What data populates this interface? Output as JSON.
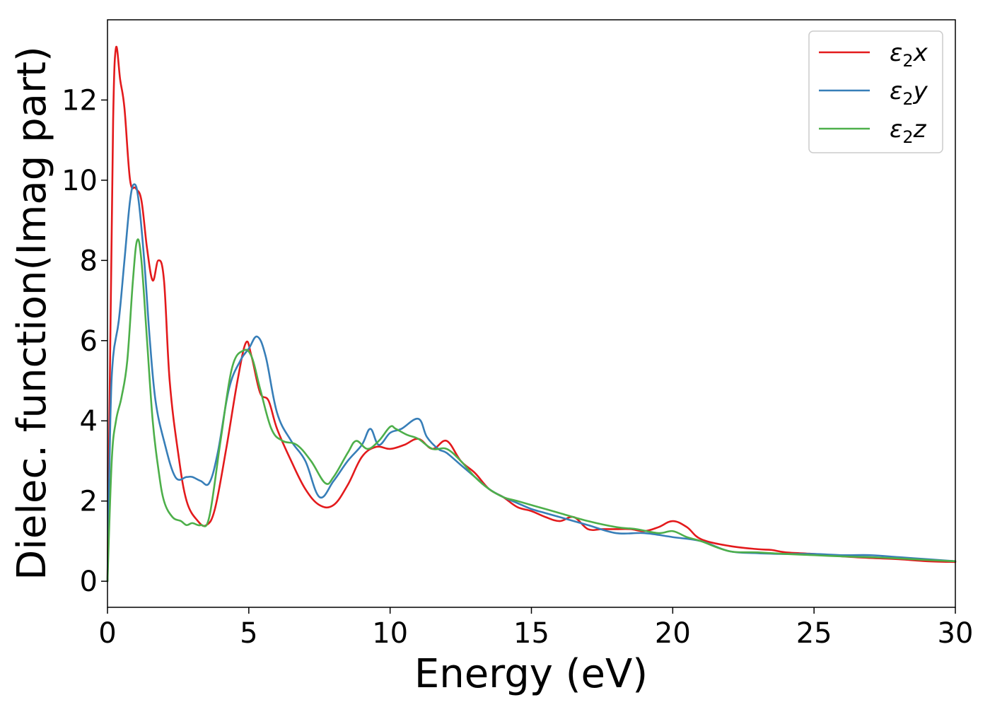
{
  "chart_data": {
    "type": "line",
    "xlabel": "Energy (eV)",
    "ylabel": "Dielec. function(Imag part)",
    "xlim": [
      0,
      30
    ],
    "ylim": [
      -0.65,
      14
    ],
    "xticks": [
      0,
      5,
      10,
      15,
      20,
      25,
      30
    ],
    "yticks": [
      0,
      2,
      4,
      6,
      8,
      10,
      12
    ],
    "grid": false,
    "legend_position": "top-right",
    "series": [
      {
        "name": "ε2x",
        "legend_main": "ε",
        "legend_sub": "2",
        "legend_tail": "x",
        "color": "#e31a1c",
        "x": [
          0,
          0.1,
          0.2,
          0.3,
          0.45,
          0.6,
          0.8,
          1.0,
          1.2,
          1.4,
          1.6,
          1.8,
          2.0,
          2.2,
          2.5,
          2.8,
          3.2,
          3.5,
          3.8,
          4.2,
          4.6,
          4.9,
          5.1,
          5.4,
          5.7,
          6.0,
          6.5,
          7.0,
          7.5,
          8.0,
          8.5,
          9.0,
          9.5,
          10.0,
          10.5,
          11.0,
          11.5,
          12.0,
          12.5,
          13.0,
          13.5,
          14.0,
          14.5,
          15.0,
          15.5,
          16.0,
          16.5,
          17.0,
          17.5,
          18.0,
          18.5,
          19.0,
          19.5,
          20.0,
          20.5,
          21.0,
          22.0,
          23.0,
          23.5,
          24.0,
          25.0,
          26.0,
          27.0,
          28.0,
          29.0,
          30.0
        ],
        "y": [
          0,
          6.0,
          11.5,
          13.3,
          12.5,
          11.8,
          10.0,
          9.8,
          9.5,
          8.3,
          7.5,
          8.0,
          7.5,
          5.0,
          3.2,
          2.0,
          1.5,
          1.4,
          1.8,
          3.3,
          5.0,
          5.95,
          5.6,
          4.7,
          4.5,
          3.8,
          3.0,
          2.3,
          1.9,
          1.9,
          2.4,
          3.1,
          3.35,
          3.3,
          3.4,
          3.55,
          3.3,
          3.5,
          3.0,
          2.7,
          2.3,
          2.1,
          1.85,
          1.75,
          1.6,
          1.5,
          1.6,
          1.3,
          1.3,
          1.3,
          1.3,
          1.25,
          1.35,
          1.5,
          1.35,
          1.05,
          0.88,
          0.8,
          0.78,
          0.72,
          0.68,
          0.62,
          0.58,
          0.55,
          0.5,
          0.48
        ]
      },
      {
        "name": "ε2y",
        "legend_main": "ε",
        "legend_sub": "2",
        "legend_tail": "y",
        "color": "#377eb8",
        "x": [
          0,
          0.1,
          0.2,
          0.4,
          0.6,
          0.8,
          0.95,
          1.1,
          1.3,
          1.5,
          1.7,
          2.0,
          2.4,
          2.8,
          3.0,
          3.3,
          3.6,
          3.9,
          4.3,
          4.7,
          5.0,
          5.3,
          5.6,
          6.0,
          6.5,
          7.0,
          7.5,
          8.0,
          8.5,
          9.0,
          9.3,
          9.6,
          10.0,
          10.4,
          11.0,
          11.3,
          11.7,
          12.0,
          12.5,
          13.0,
          13.5,
          14.0,
          14.5,
          15.0,
          15.5,
          16.0,
          17.0,
          18.0,
          19.0,
          20.0,
          21.0,
          22.0,
          23.0,
          24.0,
          25.0,
          26.0,
          27.0,
          28.0,
          29.0,
          30.0
        ],
        "y": [
          0,
          4.0,
          5.6,
          6.5,
          8.0,
          9.5,
          9.9,
          9.5,
          8.0,
          6.0,
          4.5,
          3.5,
          2.6,
          2.6,
          2.6,
          2.5,
          2.45,
          3.2,
          4.8,
          5.5,
          5.8,
          6.1,
          5.6,
          4.2,
          3.5,
          3.0,
          2.1,
          2.5,
          3.0,
          3.4,
          3.8,
          3.4,
          3.7,
          3.8,
          4.05,
          3.6,
          3.3,
          3.2,
          2.9,
          2.6,
          2.3,
          2.1,
          1.95,
          1.8,
          1.7,
          1.6,
          1.4,
          1.2,
          1.2,
          1.1,
          1.0,
          0.75,
          0.7,
          0.68,
          0.68,
          0.65,
          0.65,
          0.6,
          0.55,
          0.5
        ]
      },
      {
        "name": "ε2z",
        "legend_main": "ε",
        "legend_sub": "2",
        "legend_tail": "z",
        "color": "#4daf4a",
        "x": [
          0,
          0.15,
          0.3,
          0.5,
          0.7,
          0.9,
          1.05,
          1.2,
          1.4,
          1.6,
          1.8,
          2.0,
          2.3,
          2.6,
          2.8,
          3.0,
          3.3,
          3.6,
          4.0,
          4.4,
          4.8,
          5.1,
          5.4,
          5.8,
          6.2,
          6.7,
          7.2,
          7.7,
          8.0,
          8.5,
          8.8,
          9.2,
          9.6,
          10.0,
          10.2,
          10.6,
          11.0,
          11.5,
          12.0,
          12.5,
          13.0,
          13.5,
          14.0,
          14.5,
          15.0,
          15.5,
          16.0,
          17.0,
          18.0,
          18.7,
          19.5,
          20.0,
          20.5,
          21.0,
          22.0,
          23.0,
          24.0,
          25.0,
          26.0,
          27.0,
          28.0,
          29.0,
          30.0
        ],
        "y": [
          0,
          3.0,
          4.0,
          4.6,
          5.5,
          7.5,
          8.5,
          8.0,
          6.0,
          4.0,
          2.8,
          2.0,
          1.6,
          1.5,
          1.4,
          1.45,
          1.4,
          1.6,
          3.5,
          5.3,
          5.75,
          5.6,
          4.8,
          3.8,
          3.5,
          3.4,
          3.0,
          2.45,
          2.6,
          3.2,
          3.5,
          3.3,
          3.5,
          3.85,
          3.8,
          3.65,
          3.55,
          3.3,
          3.3,
          3.0,
          2.6,
          2.3,
          2.1,
          2.0,
          1.9,
          1.8,
          1.7,
          1.5,
          1.35,
          1.3,
          1.2,
          1.25,
          1.1,
          1.0,
          0.75,
          0.72,
          0.68,
          0.65,
          0.62,
          0.6,
          0.57,
          0.53,
          0.5
        ]
      }
    ]
  }
}
